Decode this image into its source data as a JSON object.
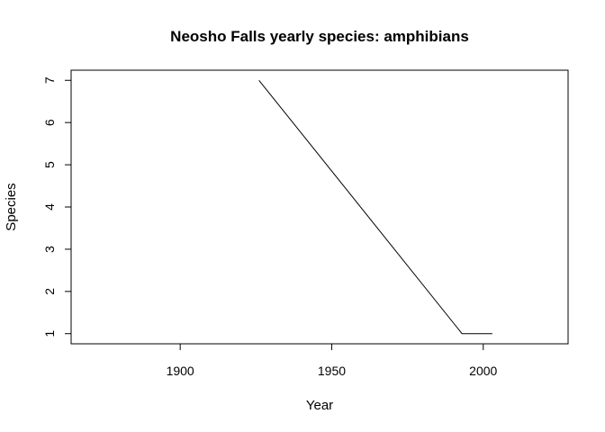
{
  "chart_data": {
    "type": "line",
    "title": "Neosho Falls yearly species: amphibians",
    "xlabel": "Year",
    "ylabel": "Species",
    "xlim": [
      1864,
      2028
    ],
    "ylim": [
      0.76,
      7.24
    ],
    "x_ticks": [
      "1900",
      "1950",
      "2000"
    ],
    "x_tick_values": [
      1900,
      1950,
      2000
    ],
    "y_ticks": [
      "1",
      "2",
      "3",
      "4",
      "5",
      "6",
      "7"
    ],
    "y_tick_values": [
      1,
      2,
      3,
      4,
      5,
      6,
      7
    ],
    "grid": false,
    "legend": "none",
    "series": [
      {
        "x": [
          1926,
          1993,
          2003
        ],
        "y": [
          7,
          1,
          1
        ]
      }
    ],
    "colors": {
      "line": "#000000",
      "axis": "#000000",
      "background": "#ffffff"
    }
  }
}
